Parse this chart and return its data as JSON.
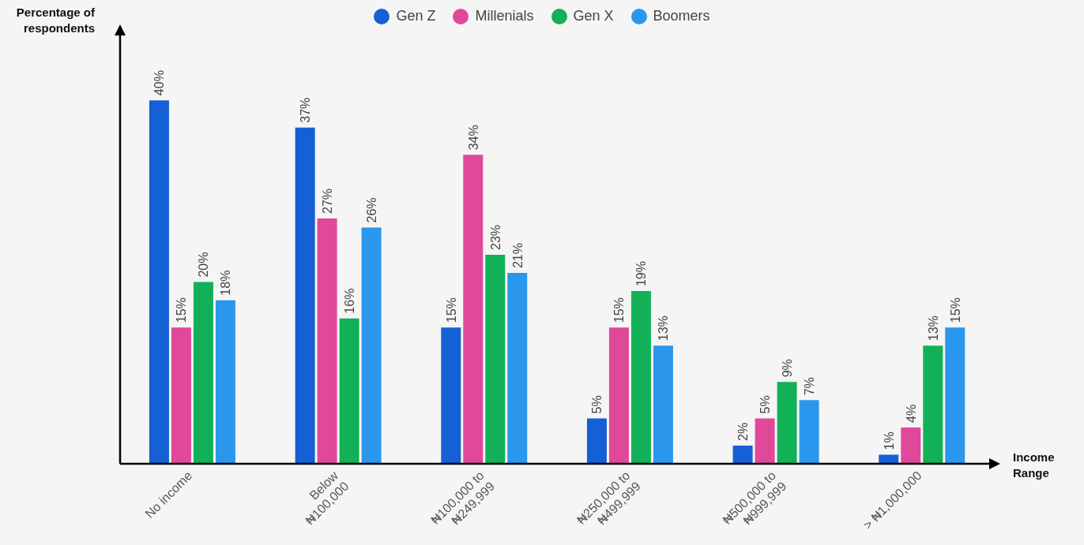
{
  "chart_data": {
    "type": "bar",
    "xlabel": "Income Range",
    "ylabel": "Percentage of respondents",
    "categories": [
      "No income",
      "Below ₦100,000",
      "₦100,000 to ₦249,999",
      "₦250,000 to ₦499,999",
      "₦500,000 to ₦999,999",
      "> ₦1,000,000"
    ],
    "series": [
      {
        "name": "Gen Z",
        "color": "#1560d4",
        "values": [
          40,
          37,
          15,
          5,
          2,
          1
        ],
        "value_labels": [
          "40%",
          "37%",
          "15%",
          "5%",
          "2%",
          "1%"
        ]
      },
      {
        "name": "Millenials",
        "color": "#e0489a",
        "values": [
          15,
          27,
          34,
          15,
          5,
          4
        ],
        "value_labels": [
          "15%",
          "27%",
          "34%",
          "15%",
          "5%",
          "4%"
        ]
      },
      {
        "name": "Gen X",
        "color": "#13b157",
        "values": [
          20,
          16,
          23,
          19,
          9,
          13
        ],
        "value_labels": [
          "20%",
          "16%",
          "23%",
          "19%",
          "9%",
          "13%"
        ]
      },
      {
        "name": "Boomers",
        "color": "#2b97ec",
        "values": [
          18,
          26,
          21,
          13,
          7,
          15
        ],
        "value_labels": [
          "18%",
          "26%",
          "21%",
          "13%",
          "7%",
          "15%"
        ]
      }
    ],
    "ylim": [
      0,
      48
    ],
    "legend": "top",
    "grid": false
  }
}
